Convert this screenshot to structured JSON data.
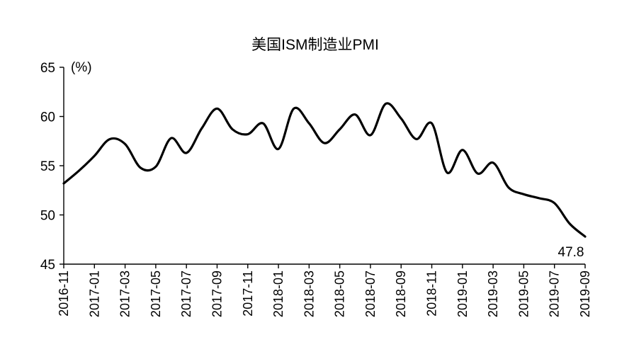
{
  "chart_data": {
    "type": "line",
    "title": "美国ISM制造业PMI",
    "unit_label": "(%)",
    "xlabel": "",
    "ylabel": "",
    "ylim": [
      45,
      65
    ],
    "yticks": [
      45,
      50,
      55,
      60,
      65
    ],
    "grid": false,
    "legend": "none",
    "x_tick_labels": [
      "2016-11",
      "2017-01",
      "2017-03",
      "2017-05",
      "2017-07",
      "2017-09",
      "2017-11",
      "2018-01",
      "2018-03",
      "2018-05",
      "2018-07",
      "2018-09",
      "2018-11",
      "2019-01",
      "2019-03",
      "2019-05",
      "2019-07",
      "2019-09"
    ],
    "x": [
      "2016-11",
      "2016-12",
      "2017-01",
      "2017-02",
      "2017-03",
      "2017-04",
      "2017-05",
      "2017-06",
      "2017-07",
      "2017-08",
      "2017-09",
      "2017-10",
      "2017-11",
      "2017-12",
      "2018-01",
      "2018-02",
      "2018-03",
      "2018-04",
      "2018-05",
      "2018-06",
      "2018-07",
      "2018-08",
      "2018-09",
      "2018-10",
      "2018-11",
      "2018-12",
      "2019-01",
      "2019-02",
      "2019-03",
      "2019-04",
      "2019-05",
      "2019-06",
      "2019-07",
      "2019-08",
      "2019-09"
    ],
    "series": [
      {
        "name": "",
        "color": "#000000",
        "values": [
          53.2,
          54.5,
          56.0,
          57.7,
          57.2,
          54.8,
          54.9,
          57.8,
          56.3,
          58.8,
          60.8,
          58.7,
          58.2,
          59.3,
          56.7,
          60.8,
          59.3,
          57.3,
          58.7,
          60.2,
          58.1,
          61.3,
          59.8,
          57.7,
          59.3,
          54.3,
          56.6,
          54.2,
          55.3,
          52.8,
          52.1,
          51.7,
          51.2,
          49.1,
          47.8
        ]
      }
    ],
    "annotations": [
      {
        "text": "47.8",
        "x": "2019-09",
        "y": 47.8
      }
    ]
  }
}
